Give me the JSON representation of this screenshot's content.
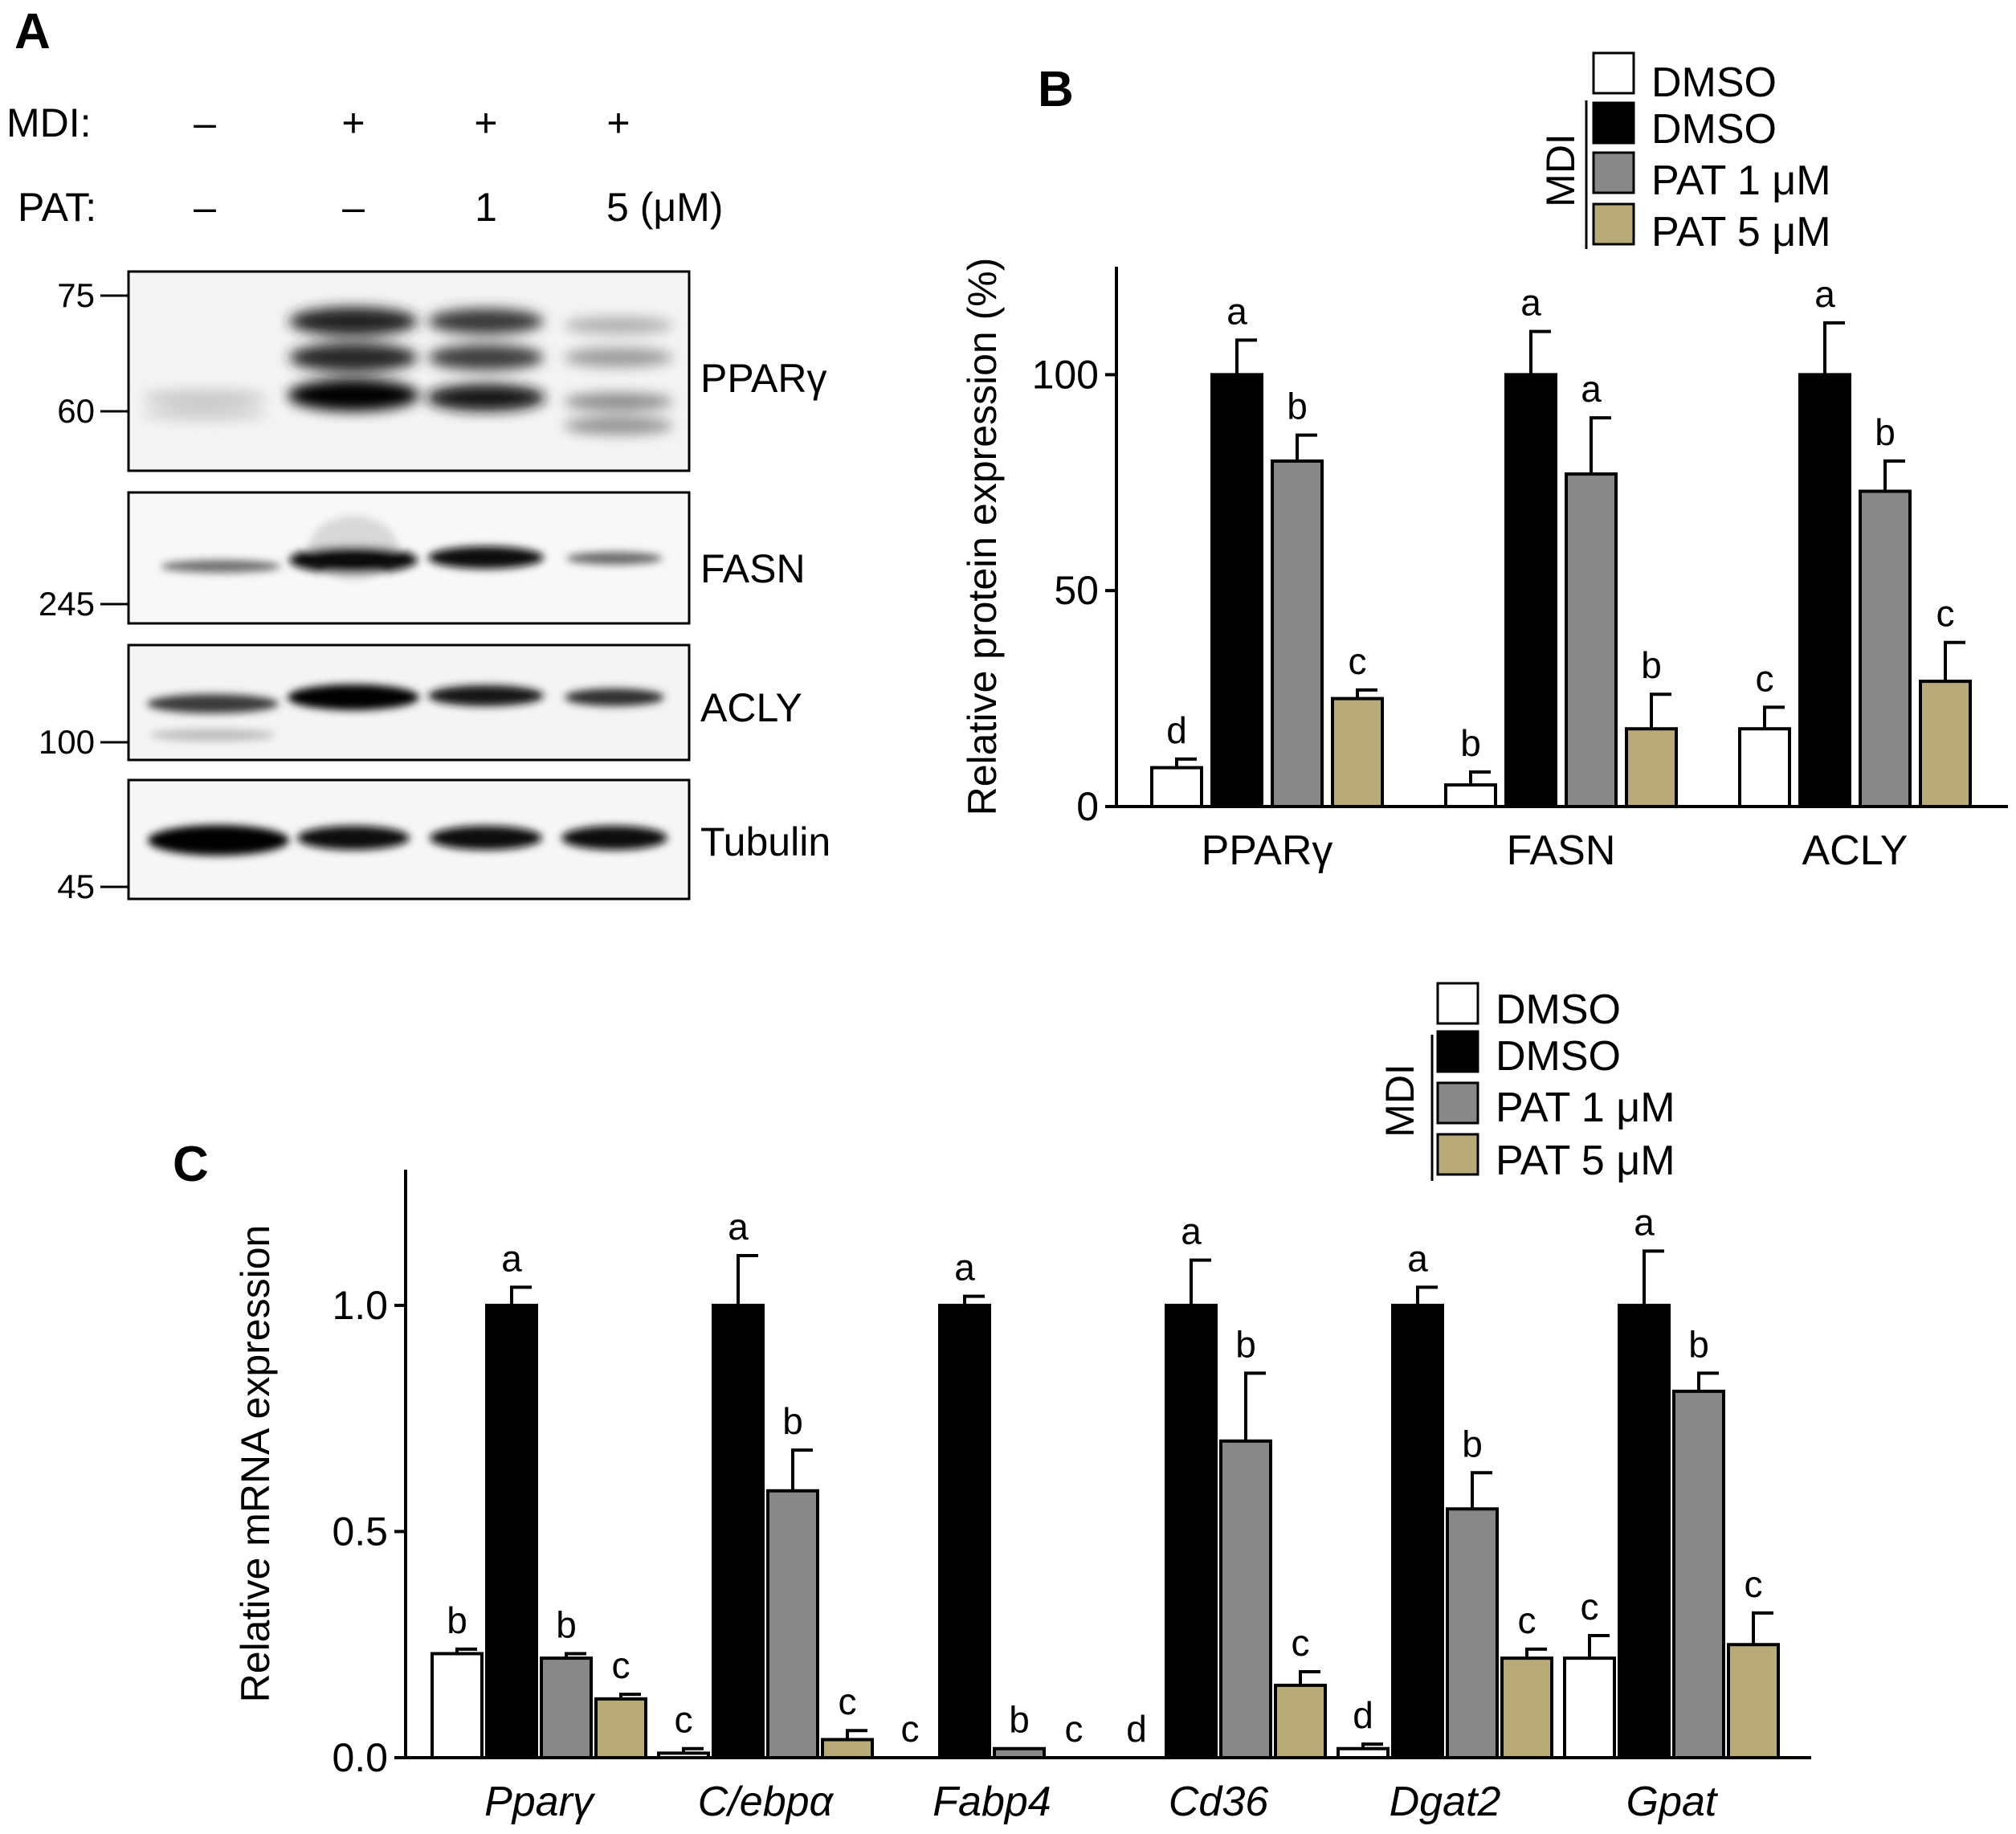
{
  "colors": {
    "white": "#ffffff",
    "black": "#000000",
    "gray": "#888888",
    "tan": "#b8ab77"
  },
  "panel_a": {
    "label": "A",
    "mdi_label": "MDI:",
    "pat_label": "PAT:",
    "mdi_values": [
      "–",
      "+",
      "+",
      "+"
    ],
    "pat_values": [
      "–",
      "–",
      "1",
      "5 (μM)"
    ],
    "blots": [
      {
        "name": "PPARγ",
        "markers": [
          "75",
          "60"
        ]
      },
      {
        "name": "FASN",
        "markers": [
          "245"
        ]
      },
      {
        "name": "ACLY",
        "markers": [
          "100"
        ]
      },
      {
        "name": "Tubulin",
        "markers": [
          "45"
        ]
      }
    ]
  },
  "legend_b": {
    "group_label": "MDI",
    "entries": [
      "DMSO",
      "DMSO",
      "PAT 1 μM",
      "PAT 5 μM"
    ]
  },
  "legend_c": {
    "group_label": "MDI",
    "entries": [
      "DMSO",
      "DMSO",
      "PAT 1 μM",
      "PAT 5 μM"
    ]
  },
  "chart_data": [
    {
      "panel": "B",
      "type": "bar",
      "ylabel": "Relative protein expression (%)",
      "ylim": [
        0,
        125
      ],
      "yticks": [
        0,
        50,
        100
      ],
      "categories": [
        "PPARγ",
        "FASN",
        "ACLY"
      ],
      "series": [
        {
          "name": "DMSO",
          "color": "#ffffff",
          "values": [
            9,
            5,
            18
          ],
          "errors": [
            2,
            3,
            5
          ],
          "letters": [
            "d",
            "b",
            "c"
          ]
        },
        {
          "name": "MDI DMSO",
          "color": "#000000",
          "values": [
            100,
            100,
            100
          ],
          "errors": [
            8,
            10,
            12
          ],
          "letters": [
            "a",
            "a",
            "a"
          ]
        },
        {
          "name": "PAT 1 μM",
          "color": "#888888",
          "values": [
            80,
            77,
            73
          ],
          "errors": [
            6,
            13,
            7
          ],
          "letters": [
            "b",
            "a",
            "b"
          ]
        },
        {
          "name": "PAT 5 μM",
          "color": "#b8ab77",
          "values": [
            25,
            18,
            29
          ],
          "errors": [
            2,
            8,
            9
          ],
          "letters": [
            "c",
            "b",
            "c"
          ]
        }
      ]
    },
    {
      "panel": "C",
      "type": "bar",
      "ylabel": "Relative mRNA expression",
      "ylim": [
        0,
        1.3
      ],
      "yticks": [
        0.0,
        0.5,
        1.0
      ],
      "categories": [
        "Pparγ",
        "C/ebpα",
        "Fabp4",
        "Cd36",
        "Dgat2",
        "Gpat"
      ],
      "series": [
        {
          "name": "DMSO",
          "color": "#ffffff",
          "values": [
            0.23,
            0.01,
            0.0,
            0.0,
            0.02,
            0.22
          ],
          "errors": [
            0.01,
            0.01,
            0,
            0,
            0.01,
            0.05
          ],
          "letters": [
            "b",
            "c",
            "c",
            "d",
            "d",
            "c"
          ]
        },
        {
          "name": "MDI DMSO",
          "color": "#000000",
          "values": [
            1.0,
            1.0,
            1.0,
            1.0,
            1.0,
            1.0
          ],
          "errors": [
            0.04,
            0.11,
            0.02,
            0.1,
            0.04,
            0.12
          ],
          "letters": [
            "a",
            "a",
            "a",
            "a",
            "a",
            "a"
          ]
        },
        {
          "name": "PAT 1 μM",
          "color": "#888888",
          "values": [
            0.22,
            0.59,
            0.02,
            0.7,
            0.55,
            0.81
          ],
          "errors": [
            0.01,
            0.09,
            0.0,
            0.15,
            0.08,
            0.04
          ],
          "letters": [
            "b",
            "b",
            "b",
            "b",
            "b",
            "b"
          ]
        },
        {
          "name": "PAT 5 μM",
          "color": "#b8ab77",
          "values": [
            0.13,
            0.04,
            0.0,
            0.16,
            0.22,
            0.25
          ],
          "errors": [
            0.01,
            0.02,
            0,
            0.03,
            0.02,
            0.07
          ],
          "letters": [
            "c",
            "c",
            "c",
            "c",
            "c",
            "c"
          ]
        }
      ]
    }
  ]
}
